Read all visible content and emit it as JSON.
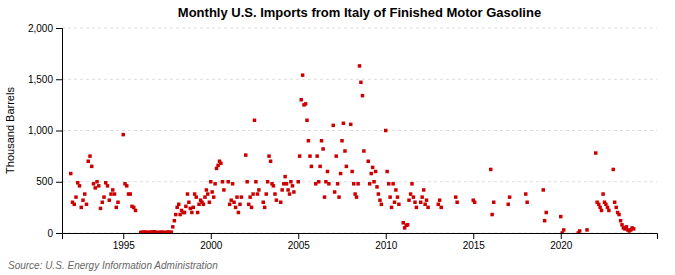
{
  "chart_data": {
    "type": "scatter",
    "title": "Monthly U.S. Imports from Italy of Finished Motor Gasoline",
    "y_label": "Thousand Barrels",
    "annotations": [
      "Source: U.S. Energy Information Administration"
    ],
    "color": "#cc0000",
    "marker": "square",
    "grid": true,
    "xlim": [
      1991.5,
      2025.5
    ],
    "ylim": [
      0,
      2000
    ],
    "xticks": [
      1995,
      2000,
      2005,
      2010,
      2015,
      2020
    ],
    "yticks": [
      0,
      500,
      {
        "value": 1000,
        "label": "1,000"
      },
      {
        "value": 1500,
        "label": "1,500"
      },
      {
        "value": 2000,
        "label": "2,000"
      }
    ],
    "x": [
      1992.0,
      1992.1,
      1992.2,
      1992.3,
      1992.4,
      1992.5,
      1992.6,
      1992.7,
      1992.8,
      1992.9,
      1993.0,
      1993.1,
      1993.2,
      1993.3,
      1993.4,
      1993.5,
      1993.6,
      1993.7,
      1993.8,
      1993.9,
      1994.0,
      1994.1,
      1994.2,
      1994.3,
      1994.4,
      1994.5,
      1994.6,
      1994.7,
      1995.0,
      1995.1,
      1995.2,
      1995.3,
      1995.4,
      1995.5,
      1995.6,
      1995.7,
      1996.0,
      1996.08,
      1996.17,
      1996.25,
      1996.33,
      1996.42,
      1996.5,
      1996.58,
      1996.67,
      1996.75,
      1996.83,
      1996.92,
      1997.0,
      1997.08,
      1997.17,
      1997.25,
      1997.33,
      1997.42,
      1997.5,
      1997.58,
      1997.67,
      1997.75,
      1997.83,
      1997.92,
      1998.0,
      1998.08,
      1998.17,
      1998.25,
      1998.33,
      1998.42,
      1998.5,
      1998.58,
      1998.67,
      1998.75,
      1998.83,
      1998.92,
      1999.0,
      1999.08,
      1999.17,
      1999.25,
      1999.33,
      1999.42,
      1999.5,
      1999.58,
      1999.67,
      1999.75,
      1999.83,
      1999.92,
      2000.0,
      2000.08,
      2000.17,
      2000.25,
      2000.33,
      2000.42,
      2000.5,
      2000.58,
      2000.67,
      2000.75,
      2001.0,
      2001.08,
      2001.17,
      2001.25,
      2001.33,
      2001.42,
      2001.5,
      2001.58,
      2001.67,
      2001.75,
      2002.0,
      2002.08,
      2002.17,
      2002.25,
      2002.33,
      2002.42,
      2002.5,
      2002.58,
      2002.67,
      2002.75,
      2003.0,
      2003.08,
      2003.17,
      2003.25,
      2003.33,
      2003.42,
      2003.5,
      2003.58,
      2003.67,
      2003.75,
      2004.0,
      2004.08,
      2004.17,
      2004.25,
      2004.33,
      2004.42,
      2004.5,
      2004.58,
      2004.67,
      2004.75,
      2005.0,
      2005.08,
      2005.17,
      2005.25,
      2005.33,
      2005.42,
      2005.5,
      2005.58,
      2005.67,
      2005.75,
      2006.0,
      2006.08,
      2006.17,
      2006.25,
      2006.33,
      2006.42,
      2006.5,
      2006.58,
      2006.67,
      2006.75,
      2007.0,
      2007.08,
      2007.17,
      2007.25,
      2007.33,
      2007.42,
      2007.5,
      2007.58,
      2007.67,
      2007.75,
      2008.0,
      2008.08,
      2008.17,
      2008.25,
      2008.33,
      2008.42,
      2008.5,
      2008.58,
      2008.67,
      2008.75,
      2009.0,
      2009.08,
      2009.17,
      2009.25,
      2009.33,
      2009.42,
      2009.5,
      2009.58,
      2009.67,
      2009.75,
      2010.0,
      2010.08,
      2010.17,
      2010.25,
      2010.33,
      2010.42,
      2010.5,
      2010.58,
      2010.67,
      2010.75,
      2011.0,
      2011.08,
      2011.17,
      2011.25,
      2011.33,
      2011.42,
      2011.5,
      2011.58,
      2011.67,
      2011.75,
      2012.0,
      2012.08,
      2012.17,
      2012.25,
      2012.33,
      2012.42,
      2013.0,
      2013.08,
      2013.17,
      2014.0,
      2014.08,
      2015.0,
      2015.08,
      2016.0,
      2016.08,
      2016.17,
      2017.0,
      2017.08,
      2018.0,
      2018.08,
      2019.0,
      2019.08,
      2019.17,
      2020.0,
      2020.08,
      2020.17,
      2021.0,
      2021.08,
      2021.5,
      2022.0,
      2022.08,
      2022.17,
      2022.25,
      2022.33,
      2022.42,
      2022.5,
      2022.58,
      2022.67,
      2022.75,
      2023.0,
      2023.08,
      2023.17,
      2023.25,
      2023.33,
      2023.42,
      2023.5,
      2023.58,
      2023.67,
      2023.75,
      2023.83,
      2023.92,
      2024.0,
      2024.08,
      2024.17
    ],
    "values": [
      580,
      300,
      280,
      350,
      490,
      460,
      250,
      320,
      380,
      280,
      700,
      750,
      650,
      480,
      440,
      500,
      460,
      240,
      300,
      350,
      490,
      460,
      320,
      380,
      420,
      380,
      250,
      300,
      960,
      480,
      460,
      380,
      380,
      260,
      250,
      220,
      5,
      8,
      6,
      10,
      4,
      7,
      5,
      9,
      6,
      12,
      8,
      5,
      4,
      6,
      8,
      5,
      7,
      4,
      6,
      10,
      5,
      8,
      60,
      120,
      180,
      250,
      280,
      180,
      220,
      200,
      200,
      260,
      380,
      300,
      240,
      200,
      250,
      380,
      350,
      200,
      280,
      320,
      300,
      280,
      350,
      420,
      380,
      300,
      500,
      400,
      350,
      480,
      630,
      660,
      700,
      680,
      500,
      420,
      500,
      280,
      320,
      480,
      300,
      250,
      350,
      200,
      280,
      350,
      760,
      500,
      280,
      350,
      250,
      380,
      1100,
      500,
      380,
      420,
      300,
      250,
      380,
      500,
      750,
      700,
      480,
      460,
      380,
      320,
      300,
      420,
      480,
      550,
      480,
      420,
      380,
      500,
      460,
      400,
      500,
      750,
      1300,
      1540,
      1250,
      1260,
      1100,
      900,
      750,
      650,
      480,
      750,
      500,
      650,
      900,
      820,
      350,
      500,
      600,
      480,
      1050,
      400,
      750,
      480,
      350,
      580,
      900,
      1070,
      800,
      650,
      1060,
      600,
      480,
      380,
      350,
      480,
      1630,
      1470,
      1340,
      800,
      700,
      480,
      580,
      640,
      500,
      600,
      450,
      380,
      320,
      280,
      1000,
      600,
      480,
      350,
      250,
      480,
      300,
      420,
      350,
      280,
      100,
      50,
      75,
      80,
      320,
      380,
      480,
      350,
      300,
      250,
      300,
      350,
      420,
      280,
      320,
      250,
      280,
      320,
      250,
      350,
      300,
      320,
      300,
      620,
      180,
      300,
      280,
      350,
      380,
      300,
      420,
      120,
      200,
      160,
      0,
      30,
      0,
      20,
      30,
      780,
      300,
      280,
      250,
      220,
      380,
      300,
      280,
      250,
      220,
      620,
      300,
      250,
      200,
      180,
      120,
      80,
      50,
      40,
      60,
      30,
      20,
      30,
      50,
      40
    ]
  }
}
